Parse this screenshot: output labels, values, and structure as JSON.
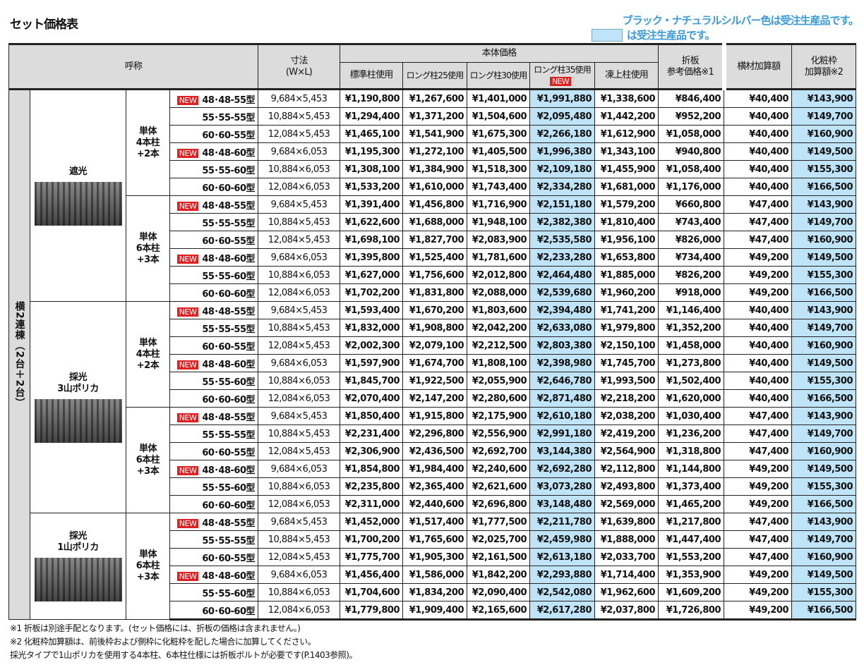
{
  "title": "セット価格表",
  "notes": {
    "line1": "ブラック・ナチュラルシルバー色は受注生産品です。",
    "line2": "は受注生産品です。"
  },
  "colors": {
    "highlight": "#bfe3f7",
    "new_badge": "#e02020",
    "note": "#3a9ad9"
  },
  "header": {
    "name": "呼称",
    "size": "寸法\n(W×L)",
    "body_price": "本体価格",
    "standard": "標準柱使用",
    "long25": "ロング柱25使用",
    "long30": "ロング柱30使用",
    "long35": "ロング柱35使用",
    "frost": "凍上柱使用",
    "orita": "折板\n参考価格※1",
    "yokozai": "横材加算額",
    "kesho": "化粧枠\n加算額※2",
    "new_badge": "NEW"
  },
  "side_label": "横2連棟（2台＋2台）",
  "new_badge": "NEW",
  "blocks": [
    {
      "roof": "遮光",
      "roof_span": 2,
      "posts": "単体\n4本柱\n+2本",
      "rows": [
        [
          "48･48-55型",
          "9,684×5,453",
          "¥1,190,800",
          "¥1,267,600",
          "¥1,401,000",
          "¥1,991,880",
          "¥1,338,600",
          "¥846,400",
          "¥40,400",
          "¥143,900",
          true
        ],
        [
          "55･55-55型",
          "10,884×5,453",
          "¥1,294,400",
          "¥1,371,200",
          "¥1,504,600",
          "¥2,095,480",
          "¥1,442,200",
          "¥952,200",
          "¥40,400",
          "¥149,700",
          false
        ],
        [
          "60･60-55型",
          "12,084×5,453",
          "¥1,465,100",
          "¥1,541,900",
          "¥1,675,300",
          "¥2,266,180",
          "¥1,612,900",
          "¥1,058,000",
          "¥40,400",
          "¥160,900",
          false
        ],
        [
          "48･48-60型",
          "9,684×6,053",
          "¥1,195,300",
          "¥1,272,100",
          "¥1,405,500",
          "¥1,996,380",
          "¥1,343,100",
          "¥940,800",
          "¥40,400",
          "¥149,500",
          true
        ],
        [
          "55･55-60型",
          "10,884×6,053",
          "¥1,308,100",
          "¥1,384,900",
          "¥1,518,300",
          "¥2,109,180",
          "¥1,455,900",
          "¥1,058,400",
          "¥40,400",
          "¥155,300",
          false
        ],
        [
          "60･60-60型",
          "12,084×6,053",
          "¥1,533,200",
          "¥1,610,000",
          "¥1,743,400",
          "¥2,334,280",
          "¥1,681,000",
          "¥1,176,000",
          "¥40,400",
          "¥166,500",
          false
        ]
      ]
    },
    {
      "posts": "単体\n6本柱\n+3本",
      "rows": [
        [
          "48･48-55型",
          "9,684×5,453",
          "¥1,391,400",
          "¥1,456,800",
          "¥1,716,900",
          "¥2,151,180",
          "¥1,579,200",
          "¥660,800",
          "¥47,400",
          "¥143,900",
          true
        ],
        [
          "55･55-55型",
          "10,884×5,453",
          "¥1,622,600",
          "¥1,688,000",
          "¥1,948,100",
          "¥2,382,380",
          "¥1,810,400",
          "¥743,400",
          "¥47,400",
          "¥149,700",
          false
        ],
        [
          "60･60-55型",
          "12,084×5,453",
          "¥1,698,100",
          "¥1,827,700",
          "¥2,083,900",
          "¥2,535,580",
          "¥1,956,100",
          "¥826,000",
          "¥47,400",
          "¥160,900",
          false
        ],
        [
          "48･48-60型",
          "9,684×6,053",
          "¥1,395,800",
          "¥1,525,400",
          "¥1,781,600",
          "¥2,233,280",
          "¥1,653,800",
          "¥734,400",
          "¥49,200",
          "¥149,500",
          true
        ],
        [
          "55･55-60型",
          "10,884×6,053",
          "¥1,627,000",
          "¥1,756,600",
          "¥2,012,800",
          "¥2,464,480",
          "¥1,885,000",
          "¥826,200",
          "¥49,200",
          "¥155,300",
          false
        ],
        [
          "60･60-60型",
          "12,084×6,053",
          "¥1,702,200",
          "¥1,831,800",
          "¥2,088,000",
          "¥2,539,680",
          "¥1,960,200",
          "¥918,000",
          "¥49,200",
          "¥166,500",
          false
        ]
      ]
    },
    {
      "roof": "採光\n3山ポリカ",
      "roof_span": 2,
      "posts": "単体\n4本柱\n+2本",
      "rows": [
        [
          "48･48-55型",
          "9,684×5,453",
          "¥1,593,400",
          "¥1,670,200",
          "¥1,803,600",
          "¥2,394,480",
          "¥1,741,200",
          "¥1,146,400",
          "¥40,400",
          "¥143,900",
          true
        ],
        [
          "55･55-55型",
          "10,884×5,453",
          "¥1,832,000",
          "¥1,908,800",
          "¥2,042,200",
          "¥2,633,080",
          "¥1,979,800",
          "¥1,352,200",
          "¥40,400",
          "¥149,700",
          false
        ],
        [
          "60･60-55型",
          "12,084×5,453",
          "¥2,002,300",
          "¥2,079,100",
          "¥2,212,500",
          "¥2,803,380",
          "¥2,150,100",
          "¥1,458,000",
          "¥40,400",
          "¥160,900",
          false
        ],
        [
          "48･48-60型",
          "9,684×6,053",
          "¥1,597,900",
          "¥1,674,700",
          "¥1,808,100",
          "¥2,398,980",
          "¥1,745,700",
          "¥1,273,800",
          "¥40,400",
          "¥149,500",
          true
        ],
        [
          "55･55-60型",
          "10,884×6,053",
          "¥1,845,700",
          "¥1,922,500",
          "¥2,055,900",
          "¥2,646,780",
          "¥1,993,500",
          "¥1,502,400",
          "¥40,400",
          "¥155,300",
          false
        ],
        [
          "60･60-60型",
          "12,084×6,053",
          "¥2,070,400",
          "¥2,147,200",
          "¥2,280,600",
          "¥2,871,480",
          "¥2,218,200",
          "¥1,620,000",
          "¥40,400",
          "¥166,500",
          false
        ]
      ]
    },
    {
      "posts": "単体\n6本柱\n+3本",
      "rows": [
        [
          "48･48-55型",
          "9,684×5,453",
          "¥1,850,400",
          "¥1,915,800",
          "¥2,175,900",
          "¥2,610,180",
          "¥2,038,200",
          "¥1,030,400",
          "¥47,400",
          "¥143,900",
          true
        ],
        [
          "55･55-55型",
          "10,884×5,453",
          "¥2,231,400",
          "¥2,296,800",
          "¥2,556,900",
          "¥2,991,180",
          "¥2,419,200",
          "¥1,236,200",
          "¥47,400",
          "¥149,700",
          false
        ],
        [
          "60･60-55型",
          "12,084×5,453",
          "¥2,306,900",
          "¥2,436,500",
          "¥2,692,700",
          "¥3,144,380",
          "¥2,564,900",
          "¥1,318,800",
          "¥47,400",
          "¥160,900",
          false
        ],
        [
          "48･48-60型",
          "9,684×6,053",
          "¥1,854,800",
          "¥1,984,400",
          "¥2,240,600",
          "¥2,692,280",
          "¥2,112,800",
          "¥1,144,800",
          "¥49,200",
          "¥149,500",
          true
        ],
        [
          "55･55-60型",
          "10,884×6,053",
          "¥2,235,800",
          "¥2,365,400",
          "¥2,621,600",
          "¥3,073,280",
          "¥2,493,800",
          "¥1,373,400",
          "¥49,200",
          "¥155,300",
          false
        ],
        [
          "60･60-60型",
          "12,084×6,053",
          "¥2,311,000",
          "¥2,440,600",
          "¥2,696,800",
          "¥3,148,480",
          "¥2,569,000",
          "¥1,465,200",
          "¥49,200",
          "¥166,500",
          false
        ]
      ]
    },
    {
      "roof": "採光\n1山ポリカ",
      "roof_span": 1,
      "posts": "単体\n6本柱\n+3本",
      "rows": [
        [
          "48･48-55型",
          "9,684×5,453",
          "¥1,452,000",
          "¥1,517,400",
          "¥1,777,500",
          "¥2,211,780",
          "¥1,639,800",
          "¥1,217,800",
          "¥47,400",
          "¥143,900",
          true
        ],
        [
          "55･55-55型",
          "10,884×5,453",
          "¥1,700,200",
          "¥1,765,600",
          "¥2,025,700",
          "¥2,459,980",
          "¥1,888,000",
          "¥1,447,400",
          "¥47,400",
          "¥149,700",
          false
        ],
        [
          "60･60-55型",
          "12,084×5,453",
          "¥1,775,700",
          "¥1,905,300",
          "¥2,161,500",
          "¥2,613,180",
          "¥2,033,700",
          "¥1,553,200",
          "¥47,400",
          "¥160,900",
          false
        ],
        [
          "48･48-60型",
          "9,684×6,053",
          "¥1,456,400",
          "¥1,586,000",
          "¥1,842,200",
          "¥2,293,880",
          "¥1,714,400",
          "¥1,353,900",
          "¥49,200",
          "¥149,500",
          true
        ],
        [
          "55･55-60型",
          "10,884×6,053",
          "¥1,704,600",
          "¥1,834,200",
          "¥2,090,400",
          "¥2,542,080",
          "¥1,962,600",
          "¥1,609,200",
          "¥49,200",
          "¥155,300",
          false
        ],
        [
          "60･60-60型",
          "12,084×6,053",
          "¥1,779,800",
          "¥1,909,400",
          "¥2,165,600",
          "¥2,617,280",
          "¥2,037,800",
          "¥1,726,800",
          "¥49,200",
          "¥166,500",
          false
        ]
      ]
    }
  ],
  "footnotes": [
    "※1 折板は別途手配となります。(セット価格には、折板の価格は含まれません。)",
    "※2 化粧枠加算額は、前後枠および側枠に化粧枠を配した場合に加算してください。",
    "採光タイプで1山ポリカを使用する4本柱、6本柱仕様には折板ボルトが必要です(P.1403参照)。"
  ]
}
